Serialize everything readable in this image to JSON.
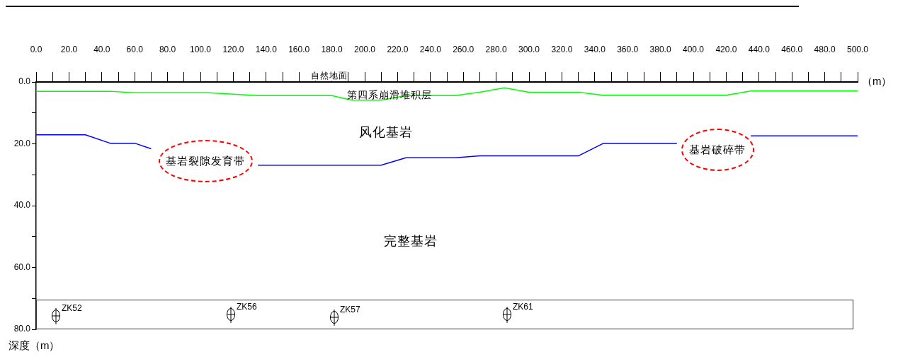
{
  "chart_data": {
    "type": "line",
    "xlabel": "（m）",
    "ylabel": "深度（m）",
    "xlim": [
      0,
      500
    ],
    "xticks": [
      {
        "value": 0,
        "label": "0.0"
      },
      {
        "value": 10,
        "label": null
      },
      {
        "value": 20,
        "label": "20.0"
      },
      {
        "value": 30,
        "label": null
      },
      {
        "value": 40,
        "label": "40.0"
      },
      {
        "value": 50,
        "label": null
      },
      {
        "value": 60,
        "label": "60.0"
      },
      {
        "value": 70,
        "label": null
      },
      {
        "value": 80,
        "label": "80.0"
      },
      {
        "value": 90,
        "label": null
      },
      {
        "value": 100,
        "label": "100.0"
      },
      {
        "value": 110,
        "label": null
      },
      {
        "value": 120,
        "label": "120.0"
      },
      {
        "value": 130,
        "label": null
      },
      {
        "value": 140,
        "label": "140.0"
      },
      {
        "value": 150,
        "label": null
      },
      {
        "value": 160,
        "label": "160.0"
      },
      {
        "value": 170,
        "label": null
      },
      {
        "value": 180,
        "label": "180.0"
      },
      {
        "value": 190,
        "label": null
      },
      {
        "value": 200,
        "label": "200.0"
      },
      {
        "value": 210,
        "label": null
      },
      {
        "value": 220,
        "label": "220.0"
      },
      {
        "value": 230,
        "label": null
      },
      {
        "value": 240,
        "label": "240.0"
      },
      {
        "value": 250,
        "label": null
      },
      {
        "value": 260,
        "label": "260.0"
      },
      {
        "value": 270,
        "label": null
      },
      {
        "value": 280,
        "label": "280.0"
      },
      {
        "value": 290,
        "label": null
      },
      {
        "value": 300,
        "label": "300.0"
      },
      {
        "value": 310,
        "label": null
      },
      {
        "value": 320,
        "label": "320.0"
      },
      {
        "value": 330,
        "label": null
      },
      {
        "value": 340,
        "label": "340.0"
      },
      {
        "value": 350,
        "label": null
      },
      {
        "value": 360,
        "label": "360.0"
      },
      {
        "value": 370,
        "label": null
      },
      {
        "value": 380,
        "label": "380.0"
      },
      {
        "value": 390,
        "label": null
      },
      {
        "value": 400,
        "label": "400.0"
      },
      {
        "value": 410,
        "label": null
      },
      {
        "value": 420,
        "label": "420.0"
      },
      {
        "value": 430,
        "label": null
      },
      {
        "value": 440,
        "label": "440.0"
      },
      {
        "value": 450,
        "label": null
      },
      {
        "value": 460,
        "label": "460.0"
      },
      {
        "value": 470,
        "label": null
      },
      {
        "value": 480,
        "label": "480.0"
      },
      {
        "value": 490,
        "label": null
      },
      {
        "value": 500,
        "label": "500.0"
      }
    ],
    "ylim": [
      80,
      0
    ],
    "yticks": [
      {
        "value": 0,
        "label": "0.0"
      },
      {
        "value": 10,
        "label": null
      },
      {
        "value": 20,
        "label": "20.0"
      },
      {
        "value": 30,
        "label": null
      },
      {
        "value": 40,
        "label": "40.0"
      },
      {
        "value": 50,
        "label": null
      },
      {
        "value": 60,
        "label": "60.0"
      },
      {
        "value": 70,
        "label": null
      },
      {
        "value": 80,
        "label": "80.0"
      }
    ],
    "grid": false,
    "legend": false,
    "marker": "none",
    "line_style": "solid",
    "series": [
      {
        "color": "#00ff00",
        "x": [
          0,
          45,
          60,
          105,
          135,
          180,
          192,
          210,
          225,
          255,
          270,
          285,
          300,
          330,
          345,
          420,
          435,
          500
        ],
        "values": [
          3,
          3,
          3.5,
          3.5,
          4.4,
          4.4,
          5.9,
          5.9,
          4.4,
          4.4,
          3.3,
          1.9,
          3.3,
          3.3,
          4.3,
          4.3,
          2.9,
          2.9
        ]
      },
      {
        "color": "#0000ff",
        "x": [
          0,
          30,
          45,
          60,
          70,
          100,
          135,
          210,
          225,
          255,
          270,
          330,
          345,
          390,
          410,
          435,
          500
        ],
        "values": [
          17.1,
          17.1,
          19.8,
          19.8,
          21.6,
          null,
          26.9,
          26.9,
          24.5,
          24.5,
          23.9,
          23.9,
          19.9,
          19.9,
          null,
          17.4,
          17.4
        ]
      }
    ],
    "annotations": [
      "自然地面",
      "第四系崩滑堆积层",
      "风化基岩",
      "基岩裂隙发育带",
      "基岩破碎带",
      "完整基岩",
      "ZK52",
      "ZK56",
      "ZK57",
      "ZK61"
    ]
  }
}
